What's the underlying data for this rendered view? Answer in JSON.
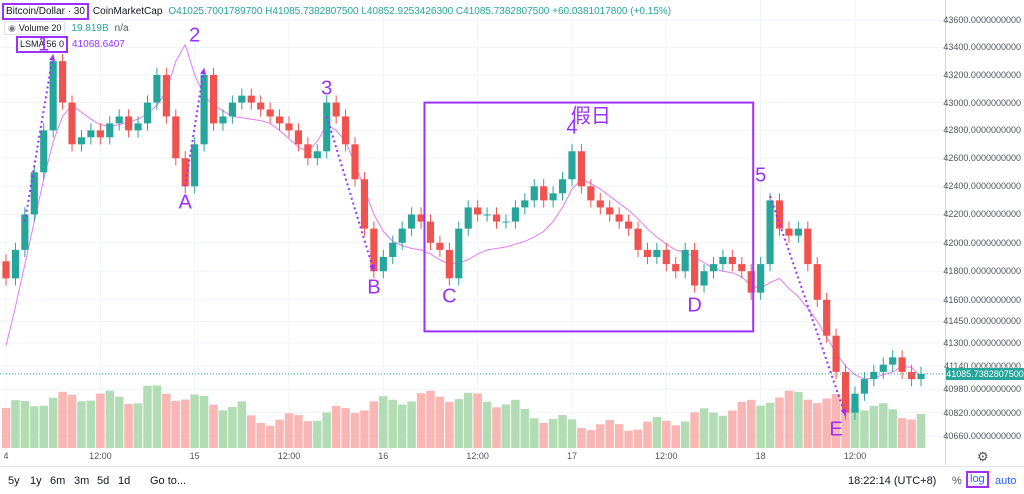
{
  "legend": {
    "symbol": "Bitcoin/Dollar · 30",
    "source": "CoinMarketCap",
    "ohlc": "O41025.7001789700  H41085.7382807500  L40852.9253426300  C41085.7382807500  +60.0381017800 (+0.15%)",
    "volume_label": "Volume 20",
    "volume_value": "19.819B",
    "volume_na": "n/a",
    "lsma_label": "LSMA 56 0",
    "lsma_value": "41068.6407"
  },
  "annotations": {
    "labels": [
      {
        "text": "1",
        "at": 4
      },
      {
        "text": "2",
        "at": 20
      },
      {
        "text": "3",
        "at": 34
      },
      {
        "text": "4",
        "at": 60
      },
      {
        "text": "5",
        "at": 80
      },
      {
        "text": "A",
        "at": 19
      },
      {
        "text": "B",
        "at": 39
      },
      {
        "text": "C",
        "at": 47
      },
      {
        "text": "D",
        "at": 73
      },
      {
        "text": "E",
        "at": 88
      }
    ],
    "holiday_label": "假日"
  },
  "toolbar": {
    "ranges": [
      "5y",
      "1y",
      "6m",
      "3m",
      "5d",
      "1d"
    ],
    "goto": "Go to...",
    "clock": "18:22:14 (UTC+8)",
    "pct": "%",
    "log": "log",
    "auto": "auto"
  },
  "colors": {
    "up": "#26a69a",
    "down": "#ef5350",
    "accent": "#9b30ff",
    "lsma": "#e37df7"
  },
  "chart_data": {
    "type": "candlestick",
    "y_scale": "log",
    "ylim": [
      40580,
      43700
    ],
    "price_ticks": [
      43600,
      43400,
      43200,
      43000,
      42800,
      42600,
      42400,
      42200,
      42000,
      41800,
      41600,
      41450,
      41300,
      41140,
      40980,
      40820,
      40660
    ],
    "price_tick_labels": [
      "43600.0000000000",
      "43400.0000000000",
      "43200.0000000000",
      "43000.0000000000",
      "42800.0000000000",
      "42600.0000000000",
      "42400.0000000000",
      "42200.0000000000",
      "42000.0000000000",
      "41800.0000000000",
      "41600.0000000000",
      "41450.0000000000",
      "41300.0000000000",
      "41140.0000000000",
      "40980.0000000000",
      "40820.0000000000",
      "40660.0000000000"
    ],
    "last_price": 41085.73828075,
    "last_price_label": "41085.7382807500",
    "time_ticks": [
      {
        "label": "4",
        "at": 0
      },
      {
        "label": "12:00",
        "at": 10
      },
      {
        "label": "15",
        "at": 20
      },
      {
        "label": "12:00",
        "at": 30
      },
      {
        "label": "16",
        "at": 40
      },
      {
        "label": "12:00",
        "at": 50
      },
      {
        "label": "17",
        "at": 60
      },
      {
        "label": "12:00",
        "at": 70
      },
      {
        "label": "18",
        "at": 80
      },
      {
        "label": "12:00",
        "at": 90
      }
    ],
    "closes": [
      41750,
      41950,
      42200,
      42500,
      42800,
      43300,
      43000,
      42700,
      42750,
      42800,
      42750,
      42850,
      42900,
      42800,
      42850,
      43000,
      43200,
      42900,
      42600,
      42400,
      42700,
      43200,
      42850,
      42900,
      43000,
      43050,
      43000,
      42950,
      42900,
      42850,
      42800,
      42700,
      42600,
      42650,
      43000,
      42900,
      42700,
      42450,
      42100,
      41800,
      41900,
      42000,
      42100,
      42200,
      42150,
      42000,
      41950,
      41750,
      42100,
      42250,
      42200,
      42200,
      42150,
      42150,
      42250,
      42300,
      42400,
      42300,
      42350,
      42450,
      42650,
      42400,
      42300,
      42250,
      42200,
      42150,
      42100,
      41950,
      41900,
      41950,
      41850,
      41800,
      41950,
      41700,
      41800,
      41850,
      41900,
      41850,
      41800,
      41650,
      41850,
      42300,
      42100,
      42050,
      42100,
      41850,
      41600,
      41350,
      41100,
      40820,
      40950,
      41050,
      41100,
      41150,
      41200,
      41100,
      41050,
      41085.73828075
    ],
    "lsma": [
      41280,
      41550,
      41850,
      42150,
      42450,
      42720,
      42900,
      42980,
      42930,
      42880,
      42840,
      42830,
      42840,
      42860,
      42880,
      42920,
      42980,
      43080,
      43300,
      43420,
      43200,
      43050,
      42980,
      42940,
      42900,
      42890,
      42880,
      42870,
      42850,
      42800,
      42740,
      42680,
      42650,
      42720,
      42840,
      42800,
      42720,
      42560,
      42380,
      42200,
      42080,
      42010,
      41980,
      41960,
      41950,
      41920,
      41880,
      41850,
      41860,
      41880,
      41920,
      41950,
      41960,
      41970,
      41990,
      42010,
      42040,
      42080,
      42150,
      42250,
      42380,
      42450,
      42420,
      42380,
      42330,
      42280,
      42230,
      42170,
      42100,
      42040,
      41990,
      41950,
      41930,
      41900,
      41860,
      41820,
      41800,
      41790,
      41760,
      41700,
      41680,
      41720,
      41750,
      41680,
      41620,
      41540,
      41450,
      41340,
      41230,
      41140,
      41080,
      41050,
      41060,
      41080,
      41100,
      41140,
      41130,
      41068.6407
    ],
    "volume_shown": "relative bar heights per candle (no printed values)"
  }
}
